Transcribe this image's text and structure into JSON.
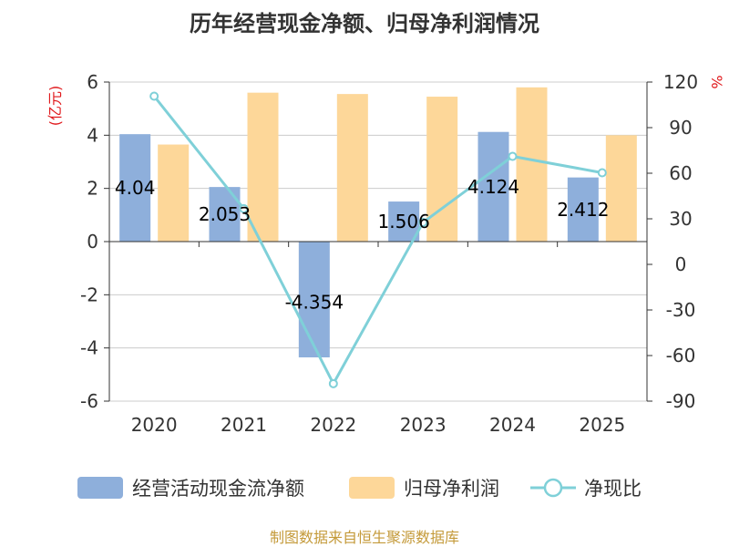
{
  "chart_data": {
    "type": "bar",
    "title": "历年经营现金净额、归母净利润情况",
    "categories": [
      "2020",
      "2021",
      "2022",
      "2023",
      "2024",
      "2025"
    ],
    "left_axis": {
      "unit": "(亿元)",
      "ticks": [
        6,
        4,
        2,
        0,
        -2,
        -4,
        -6
      ],
      "ylim": [
        -6,
        6
      ]
    },
    "right_axis": {
      "unit": "%",
      "ticks": [
        120,
        90,
        60,
        30,
        0,
        -30,
        -60,
        -90
      ],
      "ylim": [
        -90,
        120
      ]
    },
    "series": [
      {
        "name": "经营活动现金流净额",
        "type": "bar",
        "axis": "left",
        "color": "#8eafdb",
        "values": [
          4.04,
          2.053,
          -4.354,
          1.506,
          4.124,
          2.412
        ],
        "labels": [
          "4.04",
          "2.053",
          "-4.354",
          "1.506",
          "4.124",
          "2.412"
        ]
      },
      {
        "name": "归母净利润",
        "type": "bar",
        "axis": "left",
        "color": "#fdd799",
        "values": [
          3.65,
          5.6,
          5.55,
          5.45,
          5.8,
          4.0
        ]
      },
      {
        "name": "净现比",
        "type": "line",
        "axis": "right",
        "color": "#7fd0d8",
        "values": [
          110.7,
          36.7,
          -78.5,
          27.6,
          71.1,
          60.3
        ]
      }
    ],
    "grid": true,
    "legend": "bottom",
    "source": "制图数据来自恒生聚源数据库"
  }
}
